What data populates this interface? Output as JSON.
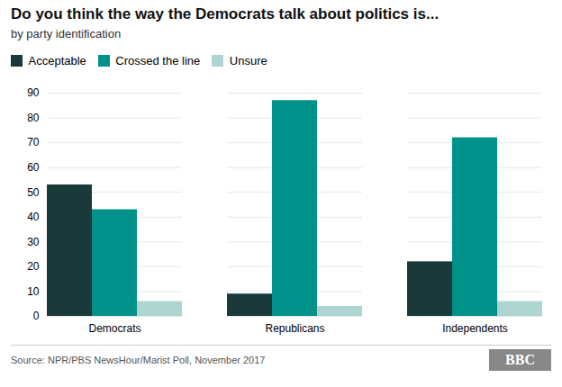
{
  "chart_data": {
    "type": "bar",
    "title": "Do you think the way the Democrats talk about politics is...",
    "subtitle": "by party identification",
    "categories": [
      "Democrats",
      "Republicans",
      "Independents"
    ],
    "series": [
      {
        "name": "Acceptable",
        "values": [
          53,
          9,
          22
        ],
        "color": "#1a3a3a"
      },
      {
        "name": "Crossed the line",
        "values": [
          43,
          87,
          72
        ],
        "color": "#00918a"
      },
      {
        "name": "Unsure",
        "values": [
          6,
          4,
          6
        ],
        "color": "#aed5d0"
      }
    ],
    "ylim": [
      0,
      90
    ],
    "yticks": [
      0,
      10,
      20,
      30,
      40,
      50,
      60,
      70,
      80,
      90
    ],
    "grid": true,
    "legend": "top",
    "source": "Source: NPR/PBS NewsHour/Marist Poll, November 2017",
    "annotations": [
      "BBC"
    ]
  }
}
